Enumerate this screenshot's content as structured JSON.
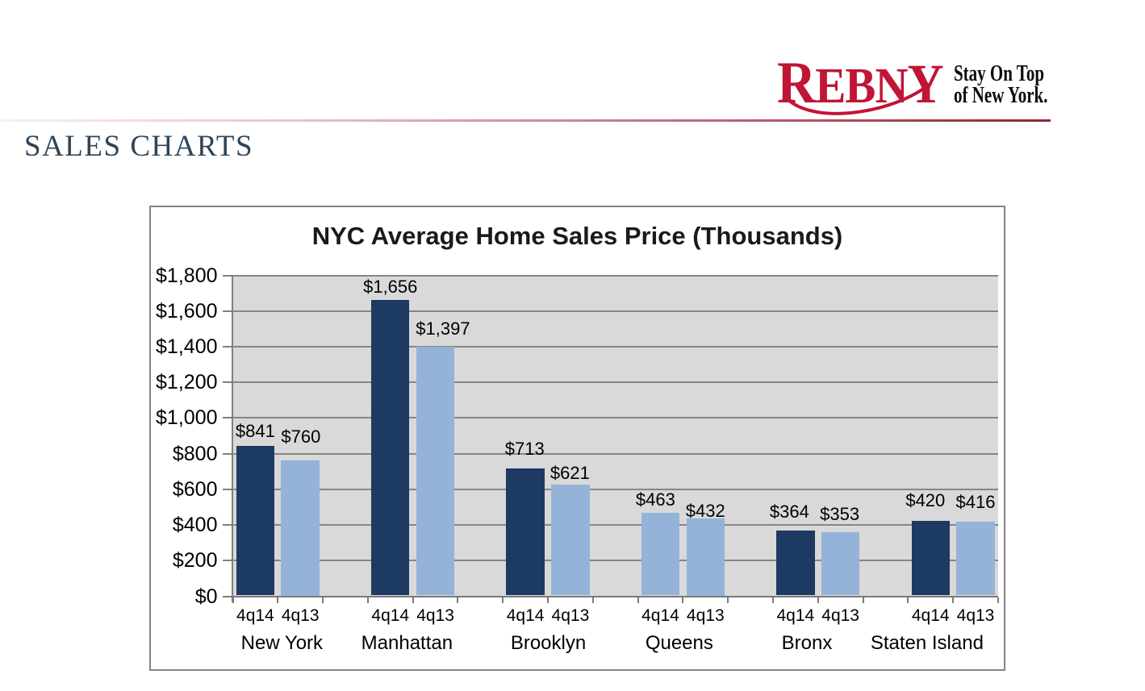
{
  "page": {
    "background": "#ffffff"
  },
  "header": {
    "logo_text": "REBNY",
    "logo_color": "#c11535",
    "tagline_line1": "Stay On Top",
    "tagline_line2": "of New York.",
    "rule_color": "#962136"
  },
  "section_title": "SALES CHARTS",
  "chart_data": {
    "type": "bar",
    "title": "NYC Average Home Sales Price (Thousands)",
    "categories": [
      "New York",
      "Manhattan",
      "Brooklyn",
      "Queens",
      "Bronx",
      "Staten Island"
    ],
    "series": [
      {
        "name": "4q14",
        "values": [
          841,
          1656,
          713,
          463,
          364,
          420
        ]
      },
      {
        "name": "4q13",
        "values": [
          760,
          1397,
          621,
          432,
          353,
          416
        ]
      }
    ],
    "data_labels": [
      [
        "$841",
        "$1,656",
        "$713",
        "$463",
        "$364",
        "$420"
      ],
      [
        "$760",
        "$1,397",
        "$621",
        "$432",
        "$353",
        "$416"
      ]
    ],
    "series_colors": [
      "#1c3a62",
      "#95b3d9"
    ],
    "color_overrides": [
      {
        "series": 0,
        "category": "Queens",
        "color": "#95b3d9"
      }
    ],
    "ylim": [
      0,
      1800
    ],
    "ytick_step": 200,
    "ytick_prefix": "$",
    "grid": true,
    "legend": "none",
    "plot_bg": "#d9d9d9",
    "grid_color": "#868686",
    "xlabel": "",
    "ylabel": ""
  }
}
